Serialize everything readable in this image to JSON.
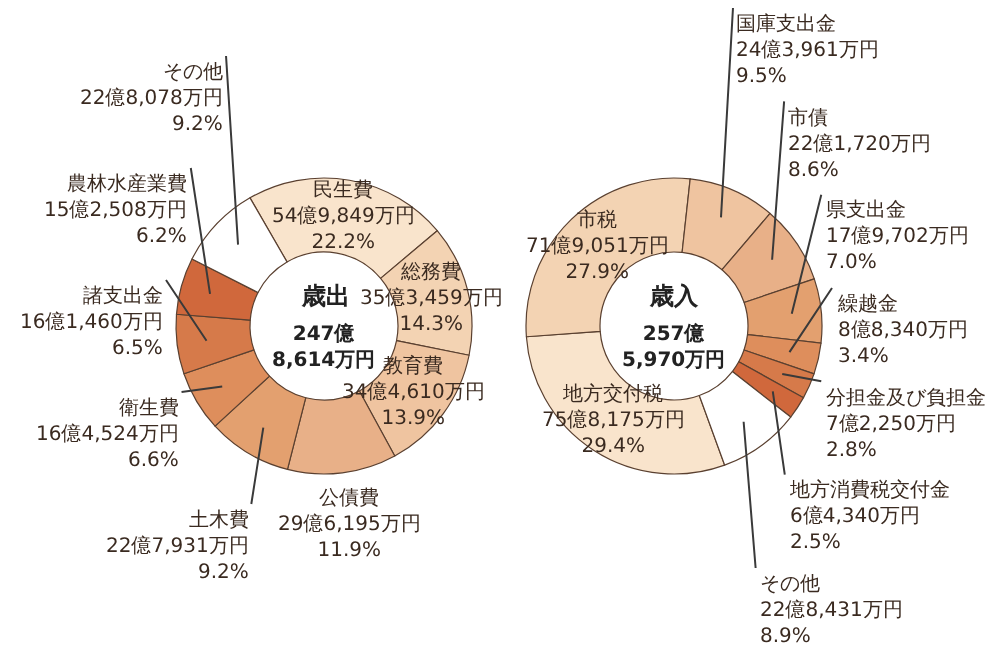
{
  "chart_data": [
    {
      "type": "donut",
      "title": "歳出",
      "subtitle": "247億\n8,614万円",
      "categories": [
        "民生費\n54億9,849万円",
        "総務費\n35億3,459万円",
        "教育費\n34億4,610万円",
        "公債費\n29億6,195万円",
        "土木費\n22億7,931万円",
        "衛生費\n16億4,524万円",
        "諸支出金\n16億1,460万円",
        "農林水産業費\n15億2,508万円",
        "その他\n22億8,078万円"
      ],
      "values": [
        22.2,
        14.3,
        13.9,
        11.9,
        9.2,
        6.6,
        6.5,
        6.2,
        9.2
      ],
      "value_labels": [
        "22.2%",
        "14.3%",
        "13.9%",
        "11.9%",
        "9.2%",
        "6.6%",
        "6.5%",
        "6.2%",
        "9.2%"
      ],
      "colors": [
        "#f9e4cc",
        "#f3d3b3",
        "#efc4a0",
        "#e8b088",
        "#e3a06f",
        "#de8e5c",
        "#d67a4a",
        "#d0683c",
        "#ffffff"
      ]
    },
    {
      "type": "donut",
      "title": "歳入",
      "subtitle": "257億\n5,970万円",
      "categories": [
        "地方交付税\n75億8,175万円",
        "市税\n71億9,051万円",
        "国庫支出金\n24億3,961万円",
        "市債\n22億1,720万円",
        "県支出金\n17億9,702万円",
        "繰越金\n8億8,340万円",
        "分担金及び負担金\n7億2,250万円",
        "地方消費税交付金\n6億4,340万円",
        "その他\n22億8,431万円"
      ],
      "values": [
        29.4,
        27.9,
        9.5,
        8.6,
        7.0,
        3.4,
        2.8,
        2.5,
        8.9
      ],
      "value_labels": [
        "29.4%",
        "27.9%",
        "9.5%",
        "8.6%",
        "7.0%",
        "3.4%",
        "2.8%",
        "2.5%",
        "8.9%"
      ],
      "colors": [
        "#f9e4cc",
        "#f3d3b3",
        "#efc4a0",
        "#e8b088",
        "#e3a06f",
        "#de8e5c",
        "#d67a4a",
        "#d0683c",
        "#ffffff"
      ]
    }
  ]
}
